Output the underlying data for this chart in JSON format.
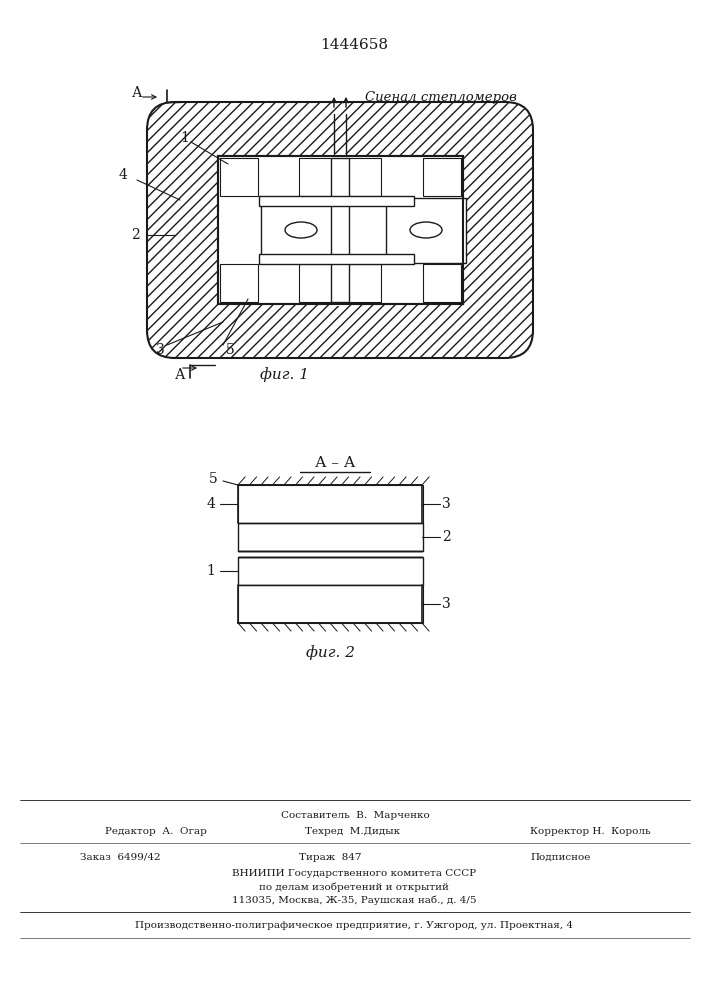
{
  "patent_number": "1444658",
  "fig1_label": "фиг. 1",
  "fig2_label": "фиг. 2",
  "section_label": "А – А",
  "signal_label": "Сиенал степломеров",
  "line_color": "#1a1a1a",
  "footer_col1_y1": "Редактор  А.  Огар",
  "footer_col2_y1a": "Составитель  В.  Марченко",
  "footer_col2_y1b": "Техред  М.Дидык",
  "footer_col3_y1": "Корректор Н.  Король",
  "footer_col1_y2": "Заказ  6499/42",
  "footer_col2_y2": "Тираж  847",
  "footer_col3_y2": "Подписное",
  "footer_vnipi1": "ВНИИПИ Государственного комитета СССР",
  "footer_vnipi2": "по делам изобретений и открытий",
  "footer_vnipi3": "113035, Москва, Ж-35, Раушская наб., д. 4/5",
  "footer_prod": "Производственно-полиграфическое предприятие, г. Ужгород, ул. Проектная, 4"
}
